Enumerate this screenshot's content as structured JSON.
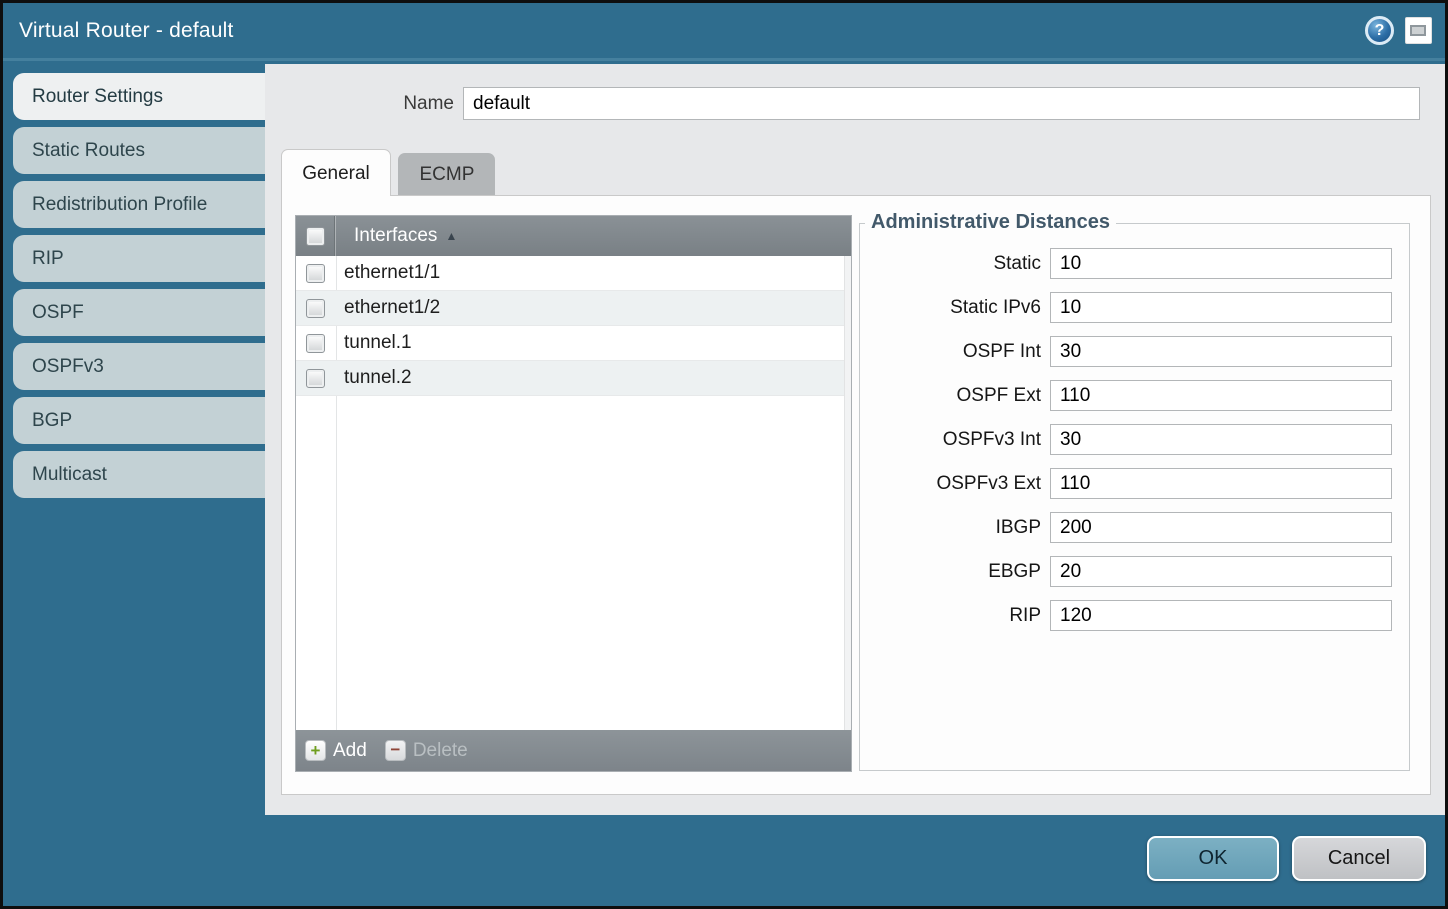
{
  "window": {
    "title": "Virtual Router - default"
  },
  "sidebar": {
    "items": [
      {
        "label": "Router Settings",
        "active": true
      },
      {
        "label": "Static Routes",
        "active": false
      },
      {
        "label": "Redistribution Profile",
        "active": false
      },
      {
        "label": "RIP",
        "active": false
      },
      {
        "label": "OSPF",
        "active": false
      },
      {
        "label": "OSPFv3",
        "active": false
      },
      {
        "label": "BGP",
        "active": false
      },
      {
        "label": "Multicast",
        "active": false
      }
    ]
  },
  "form": {
    "name_label": "Name",
    "name_value": "default"
  },
  "tabs": [
    {
      "label": "General",
      "active": true
    },
    {
      "label": "ECMP",
      "active": false
    }
  ],
  "interfaces": {
    "header": "Interfaces",
    "sort_arrow": "▲",
    "rows": [
      {
        "name": "ethernet1/1",
        "checked": false
      },
      {
        "name": "ethernet1/2",
        "checked": false
      },
      {
        "name": "tunnel.1",
        "checked": false
      },
      {
        "name": "tunnel.2",
        "checked": false
      }
    ],
    "add_label": "Add",
    "add_glyph": "+",
    "delete_label": "Delete",
    "delete_glyph": "−",
    "delete_enabled": false
  },
  "admin_distances": {
    "title": "Administrative Distances",
    "fields": [
      {
        "label": "Static",
        "value": "10"
      },
      {
        "label": "Static IPv6",
        "value": "10"
      },
      {
        "label": "OSPF Int",
        "value": "30"
      },
      {
        "label": "OSPF Ext",
        "value": "110"
      },
      {
        "label": "OSPFv3 Int",
        "value": "30"
      },
      {
        "label": "OSPFv3 Ext",
        "value": "110"
      },
      {
        "label": "IBGP",
        "value": "200"
      },
      {
        "label": "EBGP",
        "value": "20"
      },
      {
        "label": "RIP",
        "value": "120"
      }
    ]
  },
  "footer": {
    "ok_label": "OK",
    "cancel_label": "Cancel"
  },
  "icons": {
    "help": "?",
    "window": "window-restore"
  },
  "colors": {
    "chrome_teal": "#2f6d8e",
    "inactive_tab": "#c3d1d5",
    "active_tab": "#eef0f1",
    "content_bg": "#e7e8ea",
    "table_header_gray": "#81888d",
    "row_alt": "#edf1f2",
    "ok_button": "#6fa6bb",
    "cancel_button": "#c9cacc",
    "add_plus_green": "#6f9e1e",
    "delete_minus_red": "#8e4537"
  }
}
